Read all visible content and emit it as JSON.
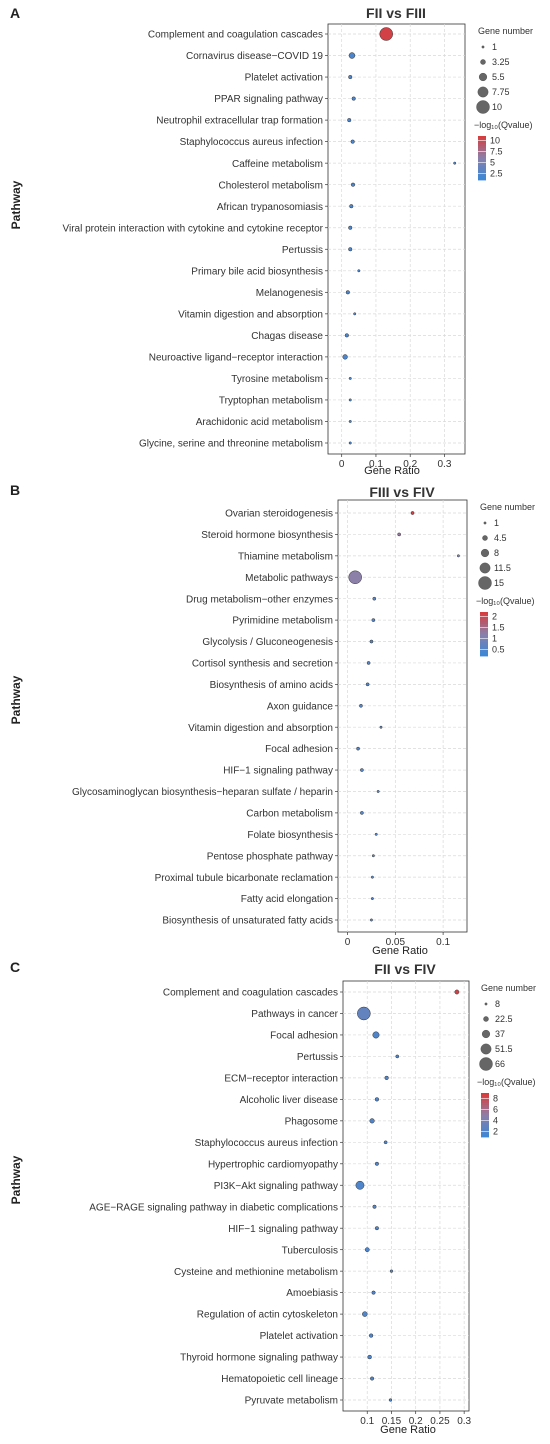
{
  "chart_data": [
    {
      "type": "scatter",
      "panel_label": "A",
      "title": "FII vs FIII",
      "xlabel": "Gene Ratio",
      "ylabel": "Pathway",
      "xlim": [
        -0.04,
        0.36
      ],
      "xticks": [
        0,
        0.1,
        0.2,
        0.3
      ],
      "xtick_labels": [
        "0",
        "0.1",
        "0.2",
        "0.3"
      ],
      "grid": true,
      "legend_position": "right",
      "size_legend": {
        "title": "Gene number",
        "labels": [
          "1",
          "3.25",
          "5.5",
          "7.75",
          "10"
        ],
        "values": [
          1,
          3.25,
          5.5,
          7.75,
          10
        ]
      },
      "color_legend": {
        "title": "−log₁₀(Qvalue)",
        "labels": [
          "10",
          "7.5",
          "5",
          "2.5"
        ],
        "values": [
          10,
          7.5,
          5,
          2.5
        ],
        "range": [
          1,
          11
        ]
      },
      "categories": [
        "Complement and coagulation cascades",
        "Cornavirus disease−COVID 19",
        "Platelet activation",
        "PPAR signaling pathway",
        "Neutrophil extracellular trap formation",
        "Staphylococcus aureus infection",
        "Caffeine metabolism",
        "Cholesterol metabolism",
        "African trypanosomiasis",
        "Viral protein interaction with cytokine and cytokine receptor",
        "Pertussis",
        "Primary bile acid biosynthesis",
        "Melanogenesis",
        "Vitamin digestion and absorption",
        "Chagas disease",
        "Neuroactive ligand−receptor interaction",
        "Tyrosine metabolism",
        "Tryptophan metabolism",
        "Arachidonic acid metabolism",
        "Glycine, serine and threonine metabolism"
      ],
      "x": [
        0.13,
        0.03,
        0.025,
        0.035,
        0.022,
        0.032,
        0.33,
        0.033,
        0.028,
        0.025,
        0.025,
        0.05,
        0.018,
        0.038,
        0.015,
        0.01,
        0.025,
        0.025,
        0.025,
        0.025
      ],
      "gene_number": [
        10,
        4,
        2,
        2,
        2,
        2,
        1,
        2,
        2,
        2,
        2,
        1,
        2,
        1,
        2,
        3,
        1,
        1,
        1,
        1
      ],
      "neg_log10_q": [
        10.5,
        2,
        2,
        2,
        2,
        2,
        2,
        2,
        2,
        2,
        2,
        2,
        2,
        2,
        2,
        2,
        2,
        2,
        2,
        2
      ]
    },
    {
      "type": "scatter",
      "panel_label": "B",
      "title": "FIII vs FIV",
      "xlabel": "Gene Ratio",
      "ylabel": "Pathway",
      "xlim": [
        -0.01,
        0.125
      ],
      "xticks": [
        0,
        0.05,
        0.1
      ],
      "xtick_labels": [
        "0",
        "0.05",
        "0.1"
      ],
      "grid": true,
      "legend_position": "right",
      "size_legend": {
        "title": "Gene number",
        "labels": [
          "1",
          "4.5",
          "8",
          "11.5",
          "15"
        ],
        "values": [
          1,
          4.5,
          8,
          11.5,
          15
        ]
      },
      "color_legend": {
        "title": "−log₁₀(Qvalue)",
        "labels": [
          "2",
          "1.5",
          "1",
          "0.5"
        ],
        "values": [
          2,
          1.5,
          1,
          0.5
        ],
        "range": [
          0.2,
          2.2
        ]
      },
      "categories": [
        "Ovarian steroidogenesis",
        "Steroid hormone biosynthesis",
        "Thiamine metabolism",
        "Metabolic pathways",
        "Drug metabolism−other enzymes",
        "Pyrimidine metabolism",
        "Glycolysis / Gluconeogenesis",
        "Cortisol synthesis and secretion",
        "Biosynthesis of amino acids",
        "Axon guidance",
        "Vitamin digestion and absorption",
        "Focal adhesion",
        "HIF−1 signaling pathway",
        "Glycosaminoglycan biosynthesis−heparan sulfate / heparin",
        "Carbon metabolism",
        "Folate biosynthesis",
        "Pentose phosphate pathway",
        "Proximal tubule bicarbonate reclamation",
        "Fatty acid elongation",
        "Biosynthesis of unsaturated fatty acids"
      ],
      "x": [
        0.068,
        0.054,
        0.116,
        0.008,
        0.028,
        0.027,
        0.025,
        0.022,
        0.021,
        0.014,
        0.035,
        0.011,
        0.015,
        0.032,
        0.015,
        0.03,
        0.027,
        0.026,
        0.026,
        0.025
      ],
      "gene_number": [
        2,
        2,
        1,
        15,
        2,
        2,
        2,
        2,
        2,
        2,
        1,
        2,
        2,
        1,
        2,
        1,
        1,
        1,
        1,
        1
      ],
      "neg_log10_q": [
        2.1,
        1.3,
        1.0,
        1.2,
        0.5,
        0.5,
        0.5,
        0.5,
        0.5,
        0.5,
        0.5,
        0.5,
        0.5,
        0.5,
        0.5,
        0.5,
        0.5,
        0.5,
        0.5,
        0.5
      ]
    },
    {
      "type": "scatter",
      "panel_label": "C",
      "title": "FII vs FIV",
      "xlabel": "Gene Ratio",
      "ylabel": "Pathway",
      "xlim": [
        0.05,
        0.31
      ],
      "xticks": [
        0.1,
        0.15,
        0.2,
        0.25,
        0.3
      ],
      "xtick_labels": [
        "0.1",
        "0.15",
        "0.2",
        "0.25",
        "0.3"
      ],
      "grid": true,
      "legend_position": "right",
      "size_legend": {
        "title": "Gene number",
        "labels": [
          "8",
          "22.5",
          "37",
          "51.5",
          "66"
        ],
        "values": [
          8,
          22.5,
          37,
          51.5,
          66
        ]
      },
      "color_legend": {
        "title": "−log₁₀(Qvalue)",
        "labels": [
          "8",
          "6",
          "4",
          "2"
        ],
        "values": [
          8,
          6,
          4,
          2
        ],
        "range": [
          1,
          9
        ]
      },
      "categories": [
        "Complement and coagulation cascades",
        "Pathways in cancer",
        "Focal adhesion",
        "Pertussis",
        "ECM−receptor interaction",
        "Alcoholic liver disease",
        "Phagosome",
        "Staphylococcus aureus infection",
        "Hypertrophic cardiomyopathy",
        "PI3K−Akt signaling pathway",
        "AGE−RAGE signaling pathway in diabetic complications",
        "HIF−1 signaling pathway",
        "Tuberculosis",
        "Cysteine and methionine metabolism",
        "Amoebiasis",
        "Regulation of actin cytoskeleton",
        "Platelet activation",
        "Thyroid hormone signaling pathway",
        "Hematopoietic cell lineage",
        "Pyruvate metabolism"
      ],
      "x": [
        0.285,
        0.093,
        0.118,
        0.162,
        0.14,
        0.12,
        0.11,
        0.138,
        0.12,
        0.085,
        0.115,
        0.12,
        0.1,
        0.15,
        0.113,
        0.095,
        0.108,
        0.105,
        0.11,
        0.148
      ],
      "gene_number": [
        18,
        66,
        30,
        12,
        15,
        15,
        20,
        12,
        14,
        40,
        14,
        14,
        18,
        10,
        14,
        22,
        15,
        16,
        14,
        10
      ],
      "neg_log10_q": [
        8.5,
        3,
        2,
        2,
        2,
        2,
        2,
        2,
        2,
        2,
        2,
        2,
        2,
        2,
        2,
        2,
        2,
        2,
        2,
        2
      ]
    }
  ],
  "colors": {
    "low": "#3a87d6",
    "mid": "#8c7fa8",
    "high": "#d93a3a",
    "grid": "#d9d9d9",
    "panel_border": "#333333",
    "marker_edge": "#333333"
  }
}
